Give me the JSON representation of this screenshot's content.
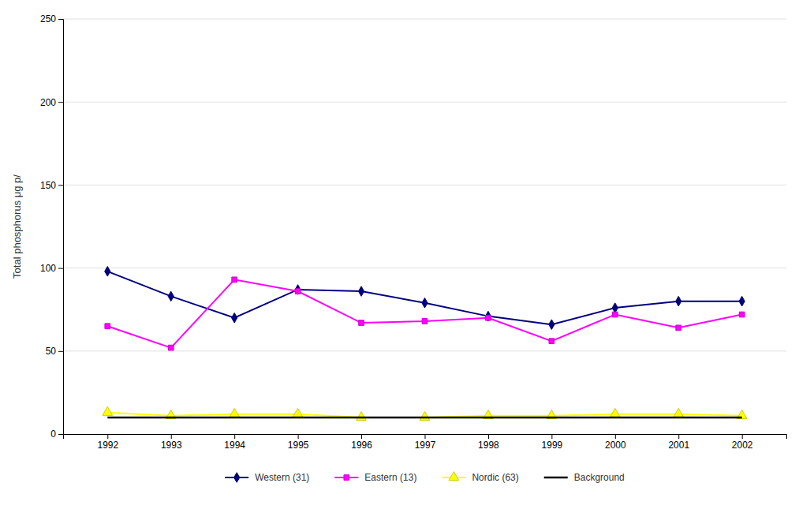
{
  "chart_data": {
    "type": "line",
    "y_label": "Total phosphorus μg p/",
    "x": [
      1992,
      1993,
      1994,
      1995,
      1996,
      1997,
      1998,
      1999,
      2000,
      2001,
      2002
    ],
    "xlim": [
      1991.3,
      2002.7
    ],
    "xticks": [
      1992,
      1993,
      1994,
      1995,
      1996,
      1997,
      1998,
      1999,
      2000,
      2001,
      2002
    ],
    "ylim": [
      0,
      250
    ],
    "yticks": [
      0,
      50,
      100,
      150,
      200,
      250
    ],
    "grid": "y",
    "legend": "bottom",
    "series": [
      {
        "name": "Western (31)",
        "color": "#000080",
        "marker": "diamond",
        "line_style": "solid",
        "values": [
          98,
          83,
          70,
          87,
          86,
          79,
          71,
          66,
          76,
          80,
          80
        ]
      },
      {
        "name": "Eastern (13)",
        "color": "#FF00FF",
        "marker": "square",
        "line_style": "solid",
        "values": [
          65,
          52,
          93,
          86,
          67,
          68,
          70,
          56,
          72,
          64,
          72
        ]
      },
      {
        "name": "Nordic (63)",
        "color": "#FFFF00",
        "marker": "triangle",
        "line_style": "solid",
        "values": [
          13,
          11,
          12,
          12,
          10,
          10,
          11,
          11,
          12,
          12,
          11
        ]
      },
      {
        "name": "Background",
        "color": "#000000",
        "marker": "none",
        "line_style": "solid",
        "values": [
          10,
          10,
          10,
          10,
          10,
          10,
          10,
          10,
          10,
          10,
          10
        ]
      }
    ]
  }
}
